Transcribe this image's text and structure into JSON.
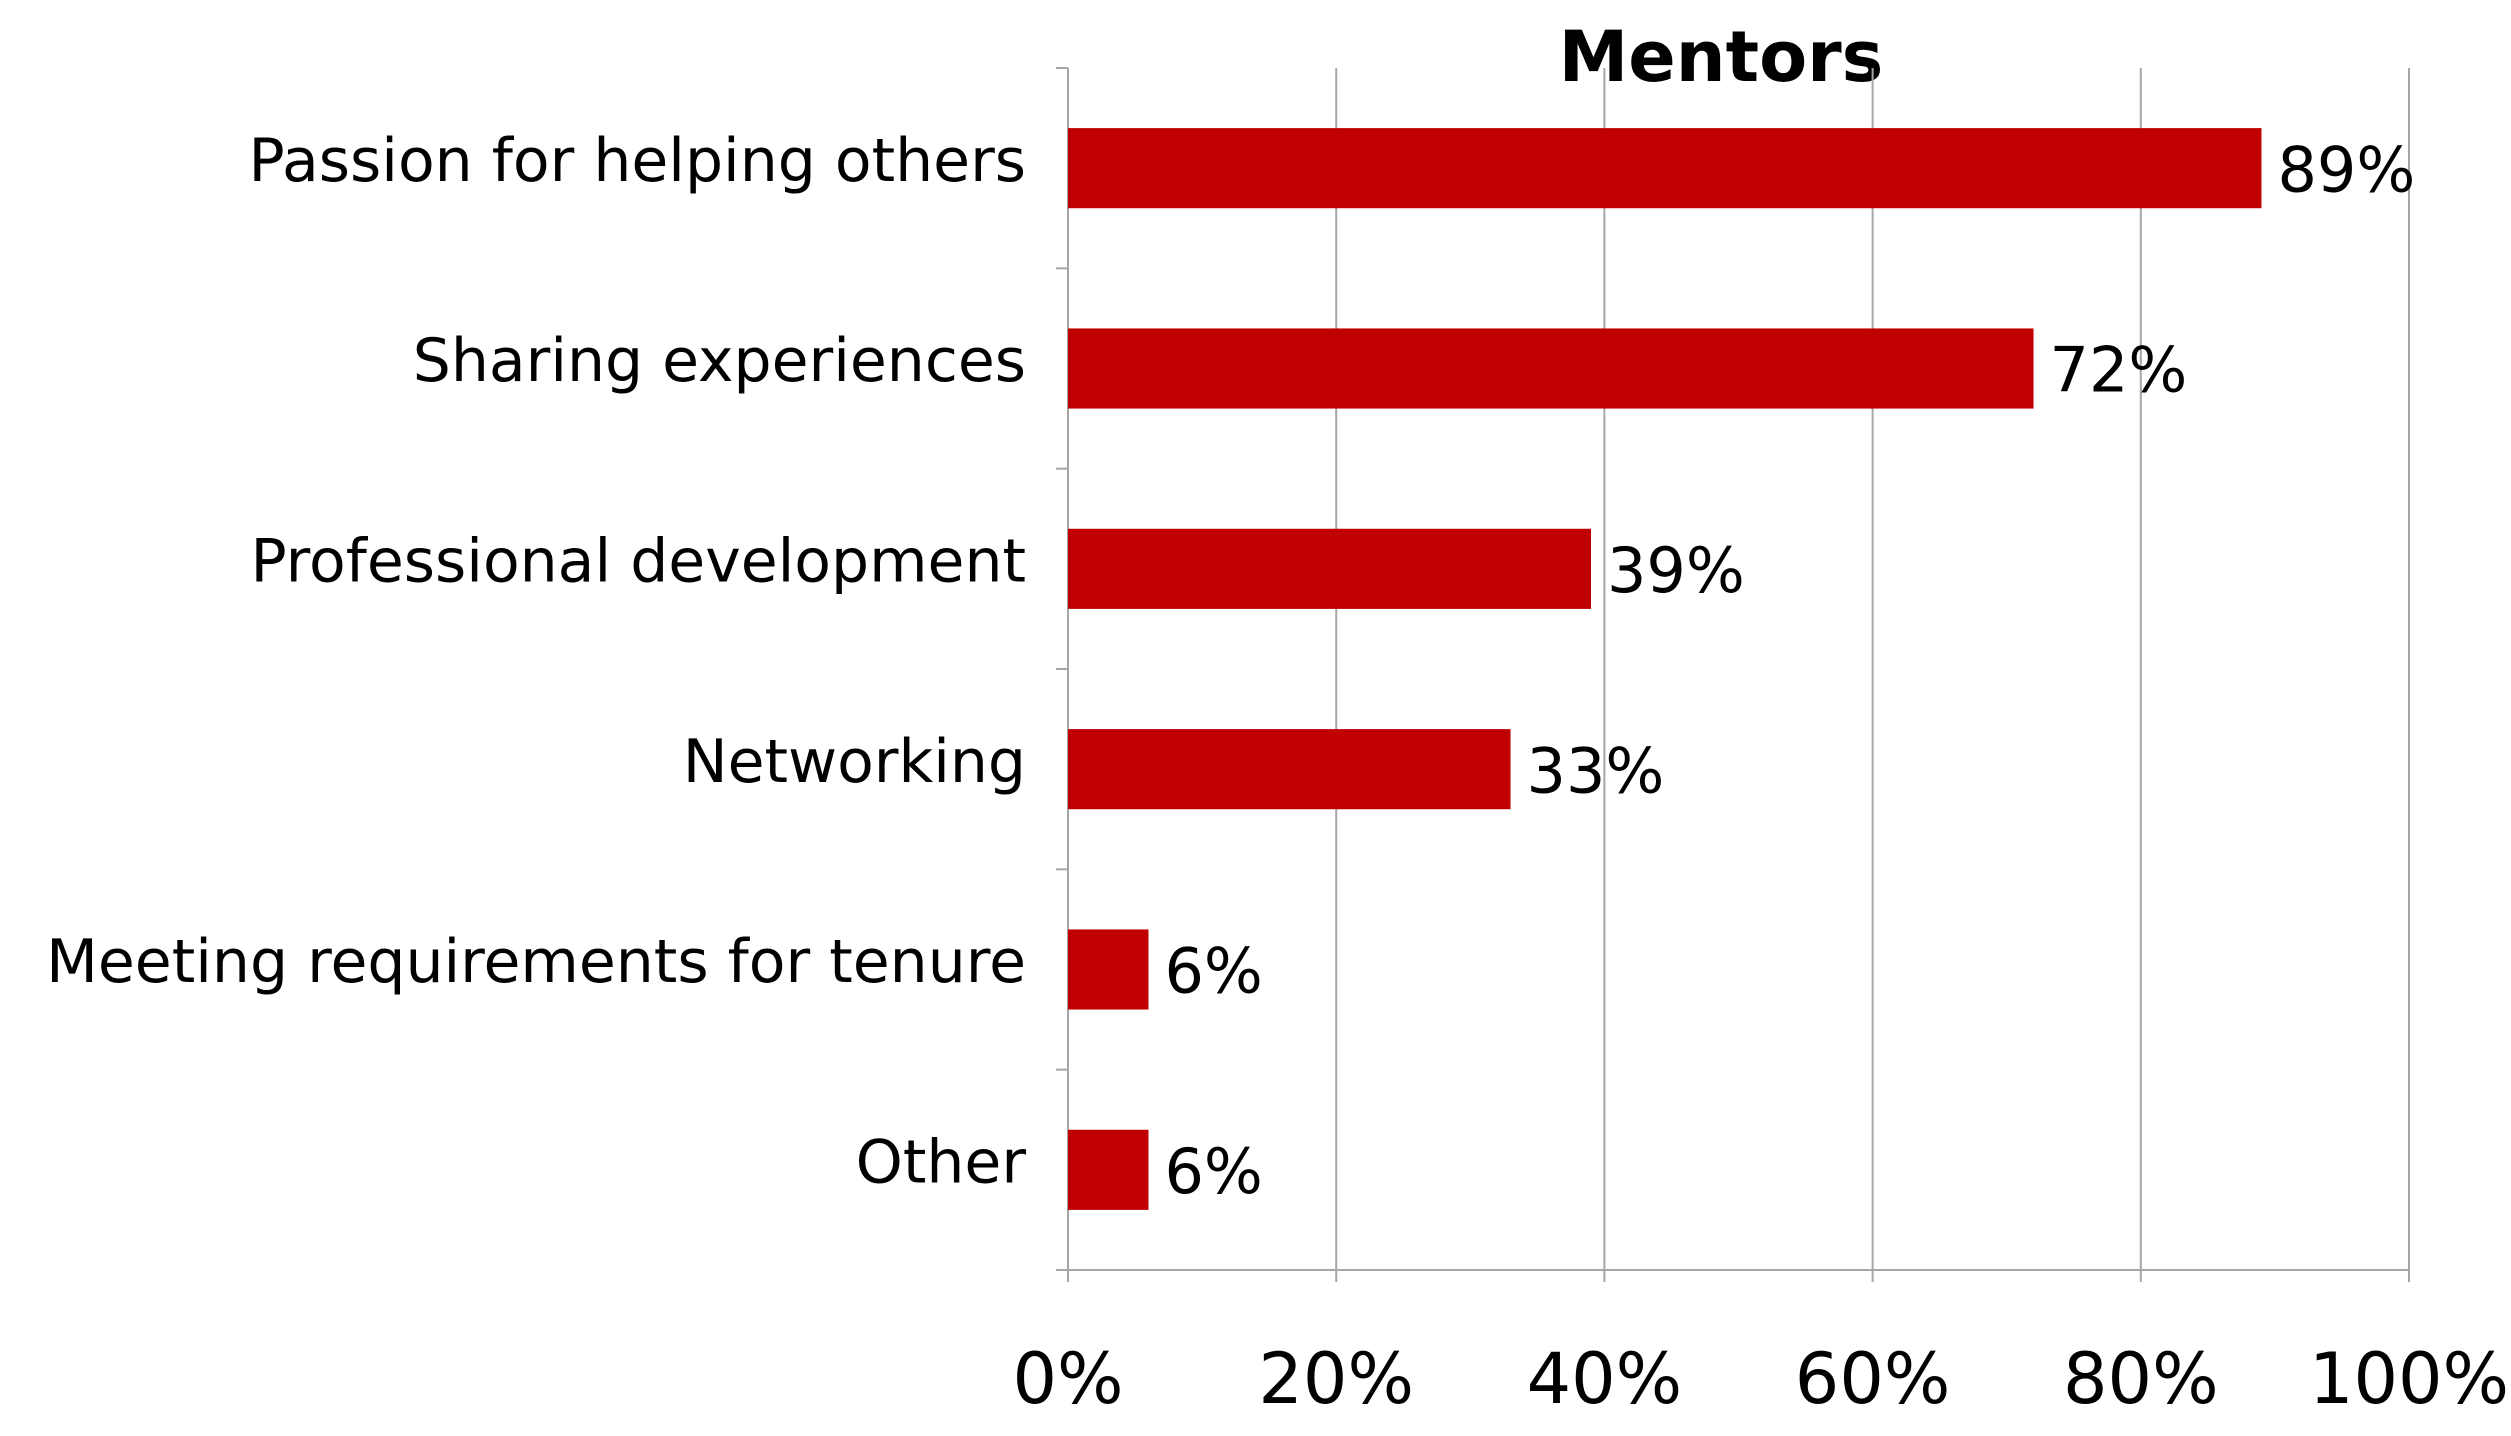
{
  "chart_data": {
    "type": "bar",
    "orientation": "horizontal",
    "title": "Mentors",
    "categories": [
      "Passion for helping others",
      "Sharing experiences",
      "Professional development",
      "Networking",
      "Meeting requirements for tenure",
      "Other"
    ],
    "values": [
      89,
      72,
      39,
      33,
      6,
      6
    ],
    "value_labels": [
      "89%",
      "72%",
      "39%",
      "33%",
      "6%",
      "6%"
    ],
    "color": "#c00000",
    "xlim": [
      0,
      100
    ],
    "xticks": [
      {
        "value": 0,
        "label": "0%"
      },
      {
        "value": 20,
        "label": "20%"
      },
      {
        "value": 40,
        "label": "40%"
      },
      {
        "value": 60,
        "label": "60%"
      },
      {
        "value": 80,
        "label": "80%"
      },
      {
        "value": 100,
        "label": "100%"
      }
    ],
    "grid": true
  }
}
